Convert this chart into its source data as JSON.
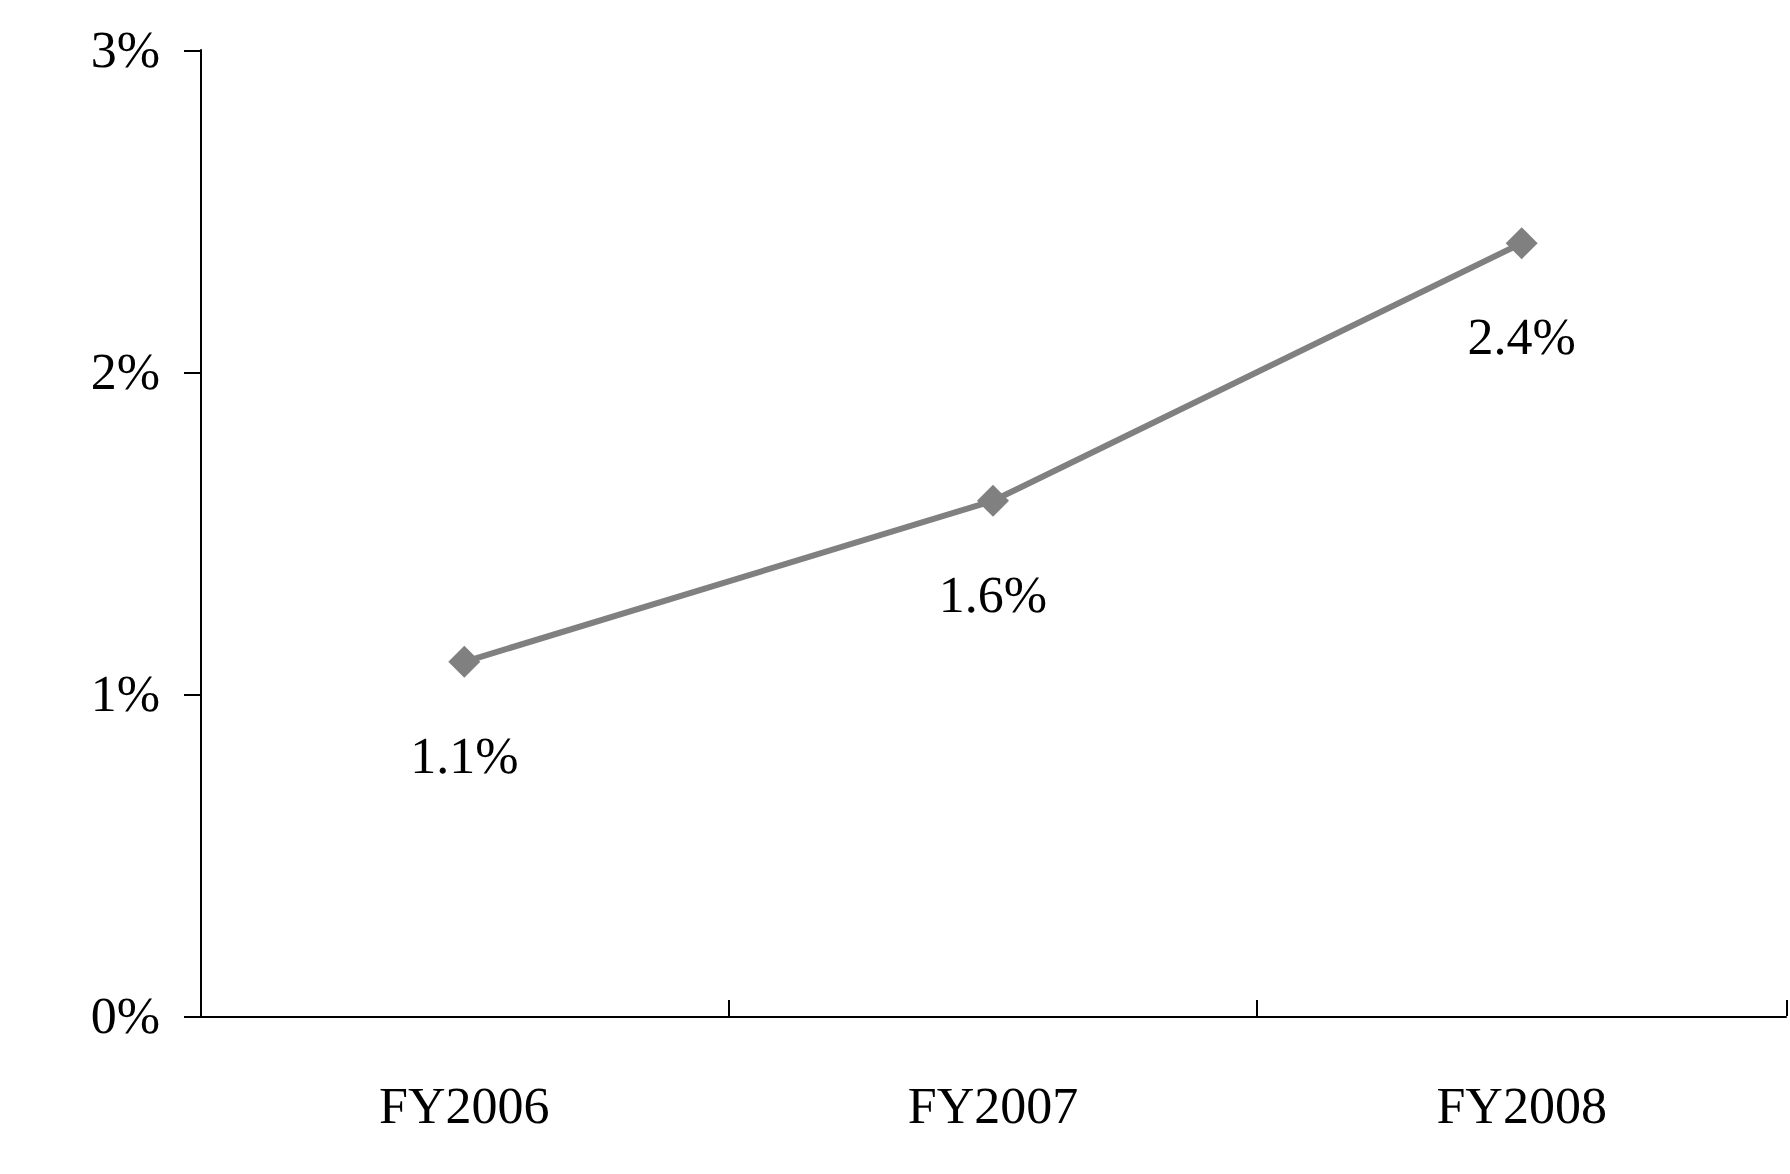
{
  "chart_data": {
    "type": "line",
    "categories": [
      "FY2006",
      "FY2007",
      "FY2008"
    ],
    "series": [
      {
        "color": "#808080",
        "values": [
          1.1,
          1.6,
          2.4
        ],
        "value_labels": [
          "1.1%",
          "1.6%",
          "2.4%"
        ]
      }
    ],
    "ylim": [
      0,
      3
    ],
    "yticks": [
      {
        "value": 0,
        "label": "0%"
      },
      {
        "value": 1,
        "label": "1%"
      },
      {
        "value": 2,
        "label": "2%"
      },
      {
        "value": 3,
        "label": "3%"
      }
    ],
    "grid": false,
    "marker": "diamond",
    "line_style": "solid"
  }
}
